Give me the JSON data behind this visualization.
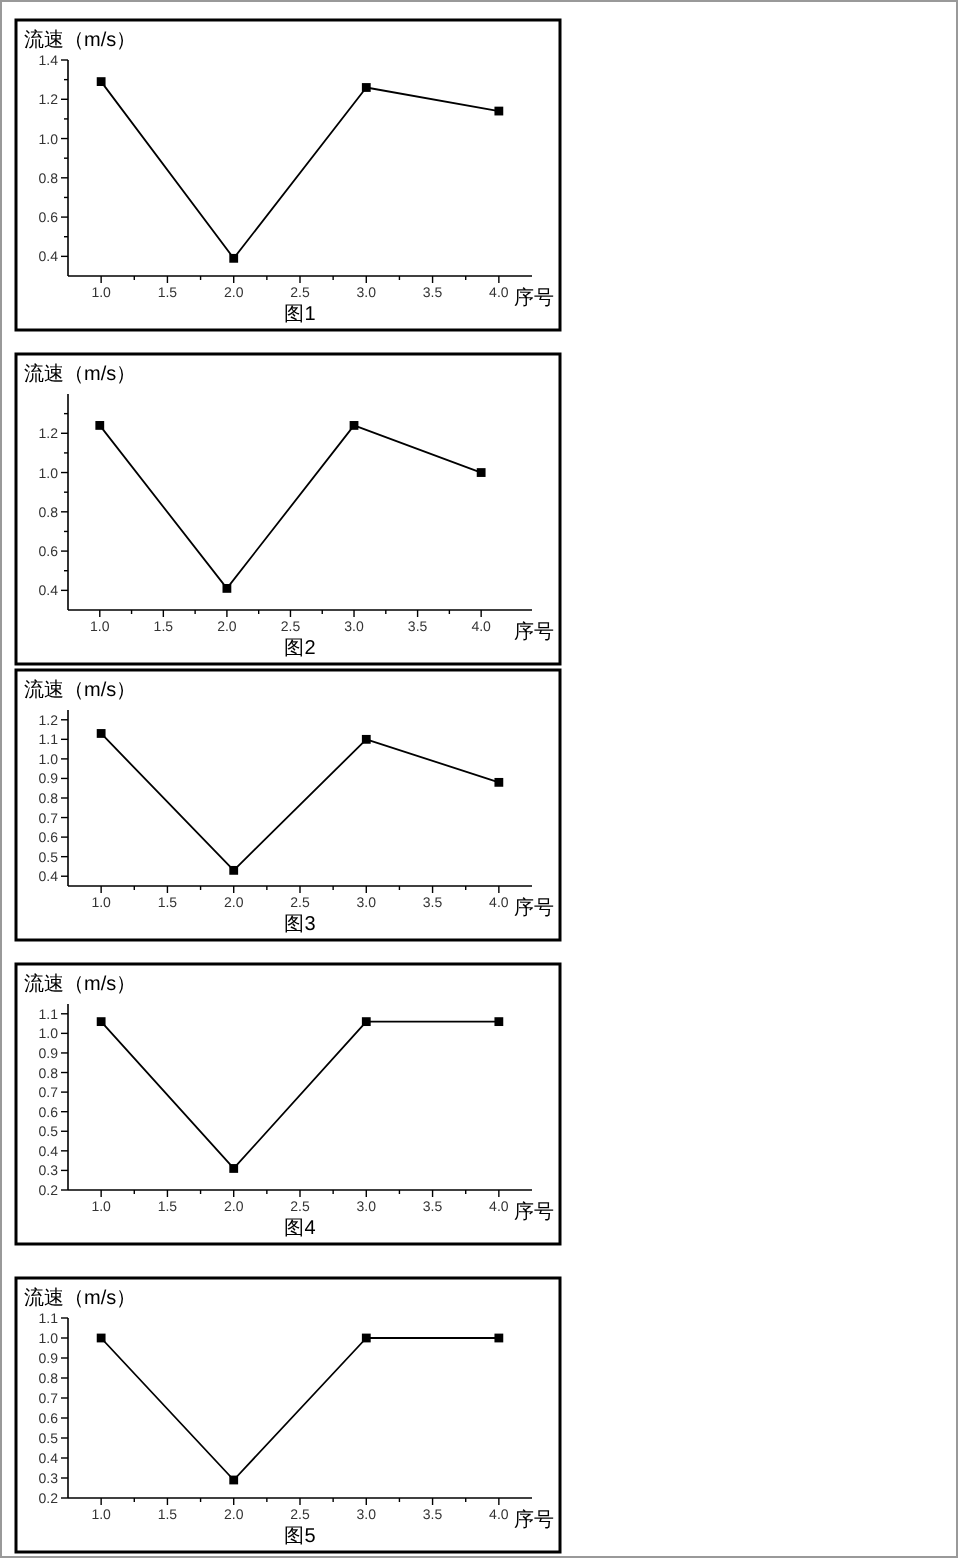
{
  "chart_data": [
    {
      "type": "line",
      "title": "图1",
      "xlabel": "序号",
      "ylabel": "流速（m/s）",
      "x": [
        1,
        2,
        3,
        4
      ],
      "values": [
        1.29,
        0.39,
        1.26,
        1.14
      ],
      "color": "#000000",
      "marker": "square",
      "line_style": "solid",
      "xlim": [
        0.75,
        4.25
      ],
      "xticks": [
        {
          "value": 1,
          "label": "1.0"
        },
        {
          "value": 1.25,
          "label": null
        },
        1.5,
        {
          "value": 1.75,
          "label": null
        },
        {
          "value": 2,
          "label": "2.0"
        },
        {
          "value": 2.25,
          "label": null
        },
        2.5,
        {
          "value": 2.75,
          "label": null
        },
        {
          "value": 3,
          "label": "3.0"
        },
        {
          "value": 3.25,
          "label": null
        },
        3.5,
        {
          "value": 3.75,
          "label": null
        },
        {
          "value": 4,
          "label": "4.0"
        }
      ],
      "ylim": [
        0.3,
        1.4
      ],
      "yticks": [
        0.4,
        {
          "value": 0.5,
          "label": null
        },
        0.6,
        {
          "value": 0.7,
          "label": null
        },
        0.8,
        {
          "value": 0.9,
          "label": null
        },
        {
          "value": 1,
          "label": "1.0"
        },
        {
          "value": 1.1,
          "label": null
        },
        1.2,
        {
          "value": 1.3,
          "label": null
        },
        1.4
      ]
    },
    {
      "type": "line",
      "title": "图2",
      "xlabel": "序号",
      "ylabel": "流速（m/s）",
      "x": [
        1,
        2,
        3,
        4
      ],
      "values": [
        1.24,
        0.41,
        1.24,
        1.0
      ],
      "color": "#000000",
      "marker": "square",
      "line_style": "solid",
      "xlim": [
        0.75,
        4.4
      ],
      "xticks": [
        {
          "value": 1,
          "label": "1.0"
        },
        {
          "value": 1.25,
          "label": null
        },
        1.5,
        {
          "value": 1.75,
          "label": null
        },
        {
          "value": 2,
          "label": "2.0"
        },
        {
          "value": 2.25,
          "label": null
        },
        2.5,
        {
          "value": 2.75,
          "label": null
        },
        {
          "value": 3,
          "label": "3.0"
        },
        {
          "value": 3.25,
          "label": null
        },
        3.5,
        {
          "value": 3.75,
          "label": null
        },
        {
          "value": 4,
          "label": "4.0"
        }
      ],
      "ylim": [
        0.3,
        1.4
      ],
      "yticks": [
        0.4,
        {
          "value": 0.5,
          "label": null
        },
        0.6,
        {
          "value": 0.7,
          "label": null
        },
        0.8,
        {
          "value": 0.9,
          "label": null
        },
        {
          "value": 1,
          "label": "1.0"
        },
        {
          "value": 1.1,
          "label": null
        },
        1.2,
        {
          "value": 1.3,
          "label": null
        }
      ]
    },
    {
      "type": "line",
      "title": "图3",
      "xlabel": "序号",
      "ylabel": "流速（m/s）",
      "x": [
        1,
        2,
        3,
        4
      ],
      "values": [
        1.13,
        0.43,
        1.1,
        0.88
      ],
      "color": "#000000",
      "marker": "square",
      "line_style": "solid",
      "xlim": [
        0.75,
        4.25
      ],
      "xticks": [
        {
          "value": 1,
          "label": "1.0"
        },
        {
          "value": 1.25,
          "label": null
        },
        1.5,
        {
          "value": 1.75,
          "label": null
        },
        {
          "value": 2,
          "label": "2.0"
        },
        {
          "value": 2.25,
          "label": null
        },
        2.5,
        {
          "value": 2.75,
          "label": null
        },
        {
          "value": 3,
          "label": "3.0"
        },
        {
          "value": 3.25,
          "label": null
        },
        3.5,
        {
          "value": 3.75,
          "label": null
        },
        {
          "value": 4,
          "label": "4.0"
        }
      ],
      "ylim": [
        0.35,
        1.25
      ],
      "yticks": [
        0.4,
        0.5,
        0.6,
        0.7,
        0.8,
        0.9,
        {
          "value": 1,
          "label": "1.0"
        },
        1.1,
        1.2
      ]
    },
    {
      "type": "line",
      "title": "图4",
      "xlabel": "序号",
      "ylabel": "流速（m/s）",
      "x": [
        1,
        2,
        3,
        4
      ],
      "values": [
        1.06,
        0.31,
        1.06,
        1.06
      ],
      "color": "#000000",
      "marker": "square",
      "line_style": "solid",
      "xlim": [
        0.75,
        4.25
      ],
      "xticks": [
        {
          "value": 1,
          "label": "1.0"
        },
        {
          "value": 1.25,
          "label": null
        },
        1.5,
        {
          "value": 1.75,
          "label": null
        },
        {
          "value": 2,
          "label": "2.0"
        },
        {
          "value": 2.25,
          "label": null
        },
        2.5,
        {
          "value": 2.75,
          "label": null
        },
        {
          "value": 3,
          "label": "3.0"
        },
        {
          "value": 3.25,
          "label": null
        },
        3.5,
        {
          "value": 3.75,
          "label": null
        },
        {
          "value": 4,
          "label": "4.0"
        }
      ],
      "ylim": [
        0.2,
        1.15
      ],
      "yticks": [
        0.2,
        0.3,
        0.4,
        0.5,
        0.6,
        0.7,
        0.8,
        0.9,
        {
          "value": 1,
          "label": "1.0"
        },
        1.1
      ]
    },
    {
      "type": "line",
      "title": "图5",
      "xlabel": "序号",
      "ylabel": "流速（m/s）",
      "x": [
        1,
        2,
        3,
        4
      ],
      "values": [
        1.0,
        0.29,
        1.0,
        1.0
      ],
      "color": "#000000",
      "marker": "square",
      "line_style": "solid",
      "xlim": [
        0.75,
        4.25
      ],
      "xticks": [
        {
          "value": 1,
          "label": "1.0"
        },
        {
          "value": 1.25,
          "label": null
        },
        1.5,
        {
          "value": 1.75,
          "label": null
        },
        {
          "value": 2,
          "label": "2.0"
        },
        {
          "value": 2.25,
          "label": null
        },
        2.5,
        {
          "value": 2.75,
          "label": null
        },
        {
          "value": 3,
          "label": "3.0"
        },
        {
          "value": 3.25,
          "label": null
        },
        3.5,
        {
          "value": 3.75,
          "label": null
        },
        {
          "value": 4,
          "label": "4.0"
        }
      ],
      "ylim": [
        0.2,
        1.1
      ],
      "yticks": [
        0.2,
        0.3,
        0.4,
        0.5,
        0.6,
        0.7,
        0.8,
        0.9,
        {
          "value": 1,
          "label": "1.0"
        },
        1.1
      ]
    }
  ]
}
